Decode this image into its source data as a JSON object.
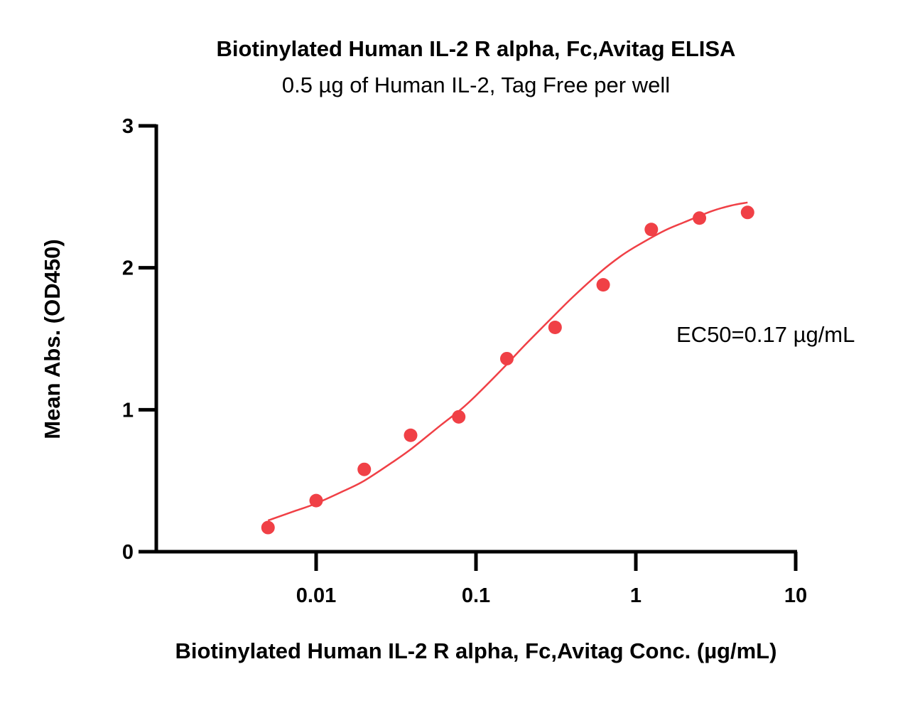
{
  "chart_data": {
    "type": "scatter",
    "title": "Biotinylated Human IL-2 R alpha, Fc,Avitag ELISA",
    "subtitle": "0.5 µg of Human IL-2, Tag Free per well",
    "xlabel": "Biotinylated Human IL-2 R alpha, Fc,Avitag Conc. (µg/mL)",
    "ylabel": "Mean Abs. (OD450)",
    "x_scale": "log",
    "xlim": [
      0.001,
      10
    ],
    "ylim": [
      0,
      3
    ],
    "x_ticks": [
      0.01,
      0.1,
      1,
      10
    ],
    "x_tick_labels": [
      "0.01",
      "0.1",
      "1",
      "10"
    ],
    "y_ticks": [
      0,
      1,
      2,
      3
    ],
    "y_tick_labels": [
      "0",
      "1",
      "2",
      "3"
    ],
    "grid": false,
    "annotation": "EC50=0.17 µg/mL",
    "series": [
      {
        "color": "#f04046",
        "x": [
          0.005,
          0.01,
          0.02,
          0.039,
          0.078,
          0.156,
          0.3125,
          0.625,
          1.25,
          2.5,
          5
        ],
        "y": [
          0.17,
          0.36,
          0.58,
          0.82,
          0.95,
          1.36,
          1.58,
          1.88,
          2.27,
          2.35,
          2.39
        ],
        "fit_curve": {
          "x": [
            0.005,
            0.0075,
            0.01,
            0.015,
            0.02,
            0.03,
            0.04,
            0.06,
            0.08,
            0.1,
            0.15,
            0.2,
            0.3,
            0.4,
            0.6,
            0.8,
            1.0,
            1.5,
            2.0,
            3.0,
            4.0,
            5.0
          ],
          "y": [
            0.22,
            0.29,
            0.34,
            0.43,
            0.5,
            0.63,
            0.73,
            0.89,
            1.0,
            1.1,
            1.3,
            1.45,
            1.65,
            1.79,
            1.97,
            2.08,
            2.15,
            2.26,
            2.32,
            2.4,
            2.44,
            2.46
          ]
        }
      }
    ]
  }
}
